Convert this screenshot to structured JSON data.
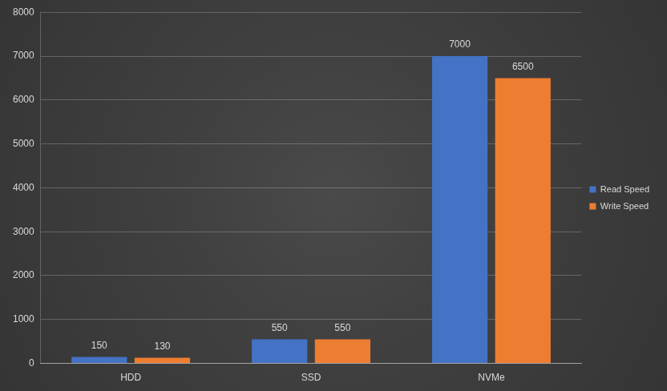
{
  "chart_data": {
    "type": "bar",
    "categories": [
      "HDD",
      "SSD",
      "NVMe"
    ],
    "series": [
      {
        "name": "Read Speed",
        "color": "#4472c4",
        "values": [
          150,
          550,
          7000
        ]
      },
      {
        "name": "Write Speed",
        "color": "#ed7d31",
        "values": [
          130,
          550,
          6500
        ]
      }
    ],
    "ylim": [
      0,
      8000
    ],
    "yticks": [
      0,
      1000,
      2000,
      3000,
      4000,
      5000,
      6000,
      7000,
      8000
    ],
    "grid": true,
    "legend": "right",
    "data_labels": true
  }
}
